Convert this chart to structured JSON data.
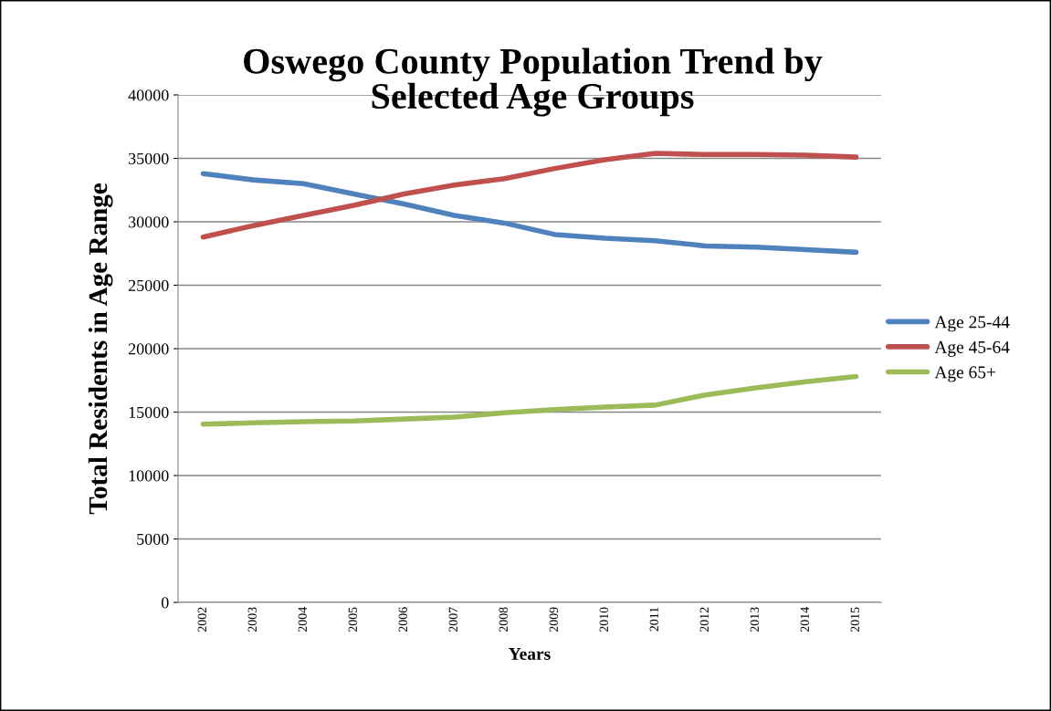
{
  "chart_data": {
    "type": "line",
    "title": "Oswego County Population Trend by\nSelected Age Groups",
    "xlabel": "Years",
    "ylabel": "Total Residents in Age Range",
    "categories": [
      "2002",
      "2003",
      "2004",
      "2005",
      "2006",
      "2007",
      "2008",
      "2009",
      "2010",
      "2011",
      "2012",
      "2013",
      "2014",
      "2015"
    ],
    "series": [
      {
        "name": "Age 25-44",
        "color": "#4f81bd",
        "values": [
          33800,
          33300,
          33000,
          32200,
          31400,
          30500,
          29900,
          29000,
          28700,
          28500,
          28100,
          28000,
          27800,
          27600
        ]
      },
      {
        "name": "Age 45-64",
        "color": "#c0504d",
        "values": [
          28800,
          29700,
          30500,
          31300,
          32200,
          32900,
          33400,
          34200,
          34900,
          35400,
          35300,
          35300,
          35250,
          35100
        ]
      },
      {
        "name": "Age 65+",
        "color": "#9bbb59",
        "values": [
          14050,
          14150,
          14250,
          14300,
          14450,
          14600,
          14950,
          15200,
          15400,
          15550,
          16350,
          16900,
          17400,
          17800
        ]
      }
    ],
    "ylim": [
      0,
      40000
    ],
    "yticks": [
      0,
      5000,
      10000,
      15000,
      20000,
      25000,
      30000,
      35000,
      40000
    ],
    "grid": "y",
    "legend": "right",
    "marker": "none",
    "line_style": "solid"
  }
}
